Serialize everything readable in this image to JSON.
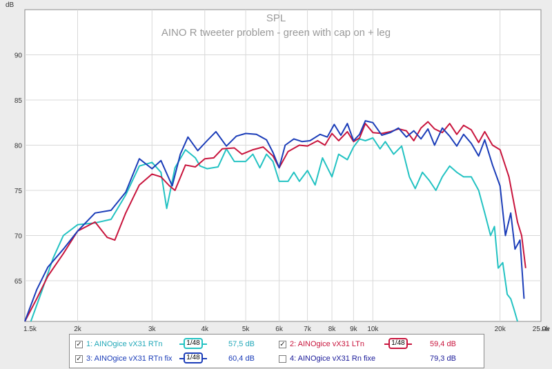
{
  "chart_data": {
    "type": "line",
    "title": "SPL",
    "subtitle": "AINO R tweeter problem - green with cap on + leg",
    "ylabel": "dB",
    "xlabel": "Hz",
    "xscale": "log",
    "xlim": [
      1500,
      25000
    ],
    "ylim": [
      60.5,
      95
    ],
    "x_ticks": [
      {
        "value": 1500,
        "label": "1,5k"
      },
      {
        "value": 2000,
        "label": "2k"
      },
      {
        "value": 3000,
        "label": "3k"
      },
      {
        "value": 4000,
        "label": "4k"
      },
      {
        "value": 5000,
        "label": "5k"
      },
      {
        "value": 6000,
        "label": "6k"
      },
      {
        "value": 7000,
        "label": "7k"
      },
      {
        "value": 8000,
        "label": "8k"
      },
      {
        "value": 9000,
        "label": "9k"
      },
      {
        "value": 10000,
        "label": "10k"
      },
      {
        "value": 20000,
        "label": "20k"
      },
      {
        "value": 25000,
        "label": "25,0k"
      }
    ],
    "y_ticks": [
      65,
      70,
      75,
      80,
      85,
      90
    ],
    "grid": true,
    "legend_position": "bottom",
    "series": [
      {
        "name": "1: AINOgice vX31 RTn",
        "color": "#22c2c2",
        "visible": true,
        "points": [
          [
            1550,
            60.5
          ],
          [
            1650,
            64
          ],
          [
            1750,
            67.5
          ],
          [
            1850,
            70
          ],
          [
            2000,
            71.2
          ],
          [
            2200,
            71.4
          ],
          [
            2400,
            71.8
          ],
          [
            2600,
            74.5
          ],
          [
            2800,
            77.7
          ],
          [
            3000,
            78.1
          ],
          [
            3150,
            77
          ],
          [
            3250,
            73
          ],
          [
            3400,
            77.5
          ],
          [
            3600,
            79.5
          ],
          [
            3800,
            78.6
          ],
          [
            3900,
            77.7
          ],
          [
            4050,
            77.4
          ],
          [
            4300,
            77.6
          ],
          [
            4500,
            79.6
          ],
          [
            4700,
            78.2
          ],
          [
            5000,
            78.2
          ],
          [
            5200,
            79
          ],
          [
            5400,
            77.5
          ],
          [
            5600,
            79
          ],
          [
            5800,
            78.2
          ],
          [
            6000,
            76
          ],
          [
            6300,
            76
          ],
          [
            6500,
            77
          ],
          [
            6700,
            76
          ],
          [
            7000,
            77.2
          ],
          [
            7300,
            75.6
          ],
          [
            7600,
            78.6
          ],
          [
            8000,
            76.5
          ],
          [
            8300,
            79
          ],
          [
            8700,
            78.4
          ],
          [
            9000,
            79.8
          ],
          [
            9300,
            80.7
          ],
          [
            9600,
            80.5
          ],
          [
            10000,
            80.8
          ],
          [
            10400,
            79.6
          ],
          [
            10700,
            80.4
          ],
          [
            11200,
            79
          ],
          [
            11700,
            79.9
          ],
          [
            12200,
            76.5
          ],
          [
            12600,
            75.2
          ],
          [
            13100,
            77
          ],
          [
            13600,
            76.1
          ],
          [
            14100,
            75
          ],
          [
            14600,
            76.5
          ],
          [
            15200,
            77.7
          ],
          [
            15800,
            77
          ],
          [
            16400,
            76.5
          ],
          [
            17100,
            76.5
          ],
          [
            17800,
            75
          ],
          [
            18400,
            72.5
          ],
          [
            19000,
            70
          ],
          [
            19400,
            71
          ],
          [
            19800,
            66.4
          ],
          [
            20300,
            67
          ],
          [
            20800,
            63.5
          ],
          [
            21200,
            63
          ],
          [
            21600,
            61.8
          ],
          [
            22000,
            60.5
          ]
        ]
      },
      {
        "name": "2: AINOgice vX31 LTn",
        "color": "#c8143c",
        "visible": true,
        "points": [
          [
            1500,
            60.5
          ],
          [
            1600,
            63
          ],
          [
            1700,
            65.5
          ],
          [
            1850,
            68
          ],
          [
            2000,
            70.5
          ],
          [
            2200,
            71.5
          ],
          [
            2350,
            69.8
          ],
          [
            2450,
            69.5
          ],
          [
            2600,
            72.5
          ],
          [
            2800,
            75.6
          ],
          [
            3000,
            76.8
          ],
          [
            3150,
            76.5
          ],
          [
            3300,
            75.5
          ],
          [
            3400,
            75
          ],
          [
            3600,
            77.8
          ],
          [
            3800,
            77.6
          ],
          [
            4000,
            78.5
          ],
          [
            4200,
            78.6
          ],
          [
            4400,
            79.6
          ],
          [
            4700,
            79.7
          ],
          [
            4900,
            79
          ],
          [
            5200,
            79.5
          ],
          [
            5500,
            79.8
          ],
          [
            5800,
            78.8
          ],
          [
            6000,
            77.5
          ],
          [
            6300,
            79.3
          ],
          [
            6700,
            80
          ],
          [
            7000,
            79.9
          ],
          [
            7400,
            80.5
          ],
          [
            7700,
            80
          ],
          [
            8000,
            81.3
          ],
          [
            8300,
            80.5
          ],
          [
            8700,
            81.5
          ],
          [
            9000,
            80.4
          ],
          [
            9300,
            80.8
          ],
          [
            9600,
            82.4
          ],
          [
            10000,
            81.4
          ],
          [
            10500,
            81.3
          ],
          [
            11000,
            81.5
          ],
          [
            11500,
            81.8
          ],
          [
            12000,
            81.6
          ],
          [
            12500,
            80.5
          ],
          [
            13000,
            81.9
          ],
          [
            13500,
            82.6
          ],
          [
            14000,
            81.8
          ],
          [
            14600,
            81.4
          ],
          [
            15200,
            82.4
          ],
          [
            15800,
            81.2
          ],
          [
            16400,
            82.2
          ],
          [
            17100,
            81.7
          ],
          [
            17800,
            80.3
          ],
          [
            18400,
            81.5
          ],
          [
            19200,
            80
          ],
          [
            20000,
            79.5
          ],
          [
            21000,
            76.5
          ],
          [
            22000,
            71.5
          ],
          [
            22500,
            70
          ],
          [
            23000,
            66.4
          ]
        ]
      },
      {
        "name": "3: AINOgice vX31 RTn fix",
        "color": "#1a3cb8",
        "visible": true,
        "points": [
          [
            1500,
            60.5
          ],
          [
            1600,
            64
          ],
          [
            1700,
            66.5
          ],
          [
            1850,
            68.5
          ],
          [
            2000,
            70.5
          ],
          [
            2200,
            72.5
          ],
          [
            2400,
            72.8
          ],
          [
            2600,
            74.8
          ],
          [
            2800,
            78.5
          ],
          [
            3000,
            77.4
          ],
          [
            3150,
            78.3
          ],
          [
            3350,
            75.5
          ],
          [
            3500,
            79
          ],
          [
            3650,
            80.9
          ],
          [
            3850,
            79.4
          ],
          [
            4050,
            80.5
          ],
          [
            4250,
            81.5
          ],
          [
            4500,
            79.9
          ],
          [
            4750,
            81
          ],
          [
            5000,
            81.3
          ],
          [
            5300,
            81.2
          ],
          [
            5600,
            80.6
          ],
          [
            5800,
            79.2
          ],
          [
            6000,
            77.5
          ],
          [
            6200,
            80
          ],
          [
            6500,
            80.7
          ],
          [
            6800,
            80.4
          ],
          [
            7100,
            80.5
          ],
          [
            7500,
            81.2
          ],
          [
            7800,
            80.9
          ],
          [
            8100,
            82.3
          ],
          [
            8400,
            81.1
          ],
          [
            8700,
            82.4
          ],
          [
            9000,
            80.5
          ],
          [
            9300,
            81.2
          ],
          [
            9600,
            82.7
          ],
          [
            10000,
            82.5
          ],
          [
            10500,
            81.1
          ],
          [
            11000,
            81.4
          ],
          [
            11500,
            81.9
          ],
          [
            12000,
            80.9
          ],
          [
            12500,
            81.6
          ],
          [
            13000,
            80.7
          ],
          [
            13500,
            81.8
          ],
          [
            14000,
            80
          ],
          [
            14600,
            81.9
          ],
          [
            15200,
            81
          ],
          [
            15800,
            79.9
          ],
          [
            16400,
            81.2
          ],
          [
            17100,
            80.2
          ],
          [
            17800,
            78.8
          ],
          [
            18400,
            80.6
          ],
          [
            19200,
            77.8
          ],
          [
            20000,
            75.5
          ],
          [
            20600,
            70
          ],
          [
            21200,
            72.5
          ],
          [
            21700,
            68.5
          ],
          [
            22300,
            69.5
          ],
          [
            22800,
            63
          ]
        ]
      },
      {
        "name": "4: AINOgice vX31 Rn fixe",
        "color": "#1a1a99",
        "visible": false,
        "points": []
      }
    ]
  },
  "legend": [
    {
      "label": "1: AINOgice vX31 RTn",
      "checked": true,
      "smoothing": "1/48",
      "value": "57,5 dB",
      "color": "#22c2c2"
    },
    {
      "label": "2: AINOgice vX31 LTn",
      "checked": true,
      "smoothing": "1/48",
      "value": "59,4 dB",
      "color": "#c8143c"
    },
    {
      "label": "3: AINOgice vX31 RTn fix",
      "checked": true,
      "smoothing": "1/48",
      "value": "60,4 dB",
      "color": "#1a3cb8"
    },
    {
      "label": "4: AINOgice vX31 Rn fixe",
      "checked": false,
      "smoothing": "",
      "value": "79,3 dB",
      "color": "#1a1a99"
    }
  ]
}
